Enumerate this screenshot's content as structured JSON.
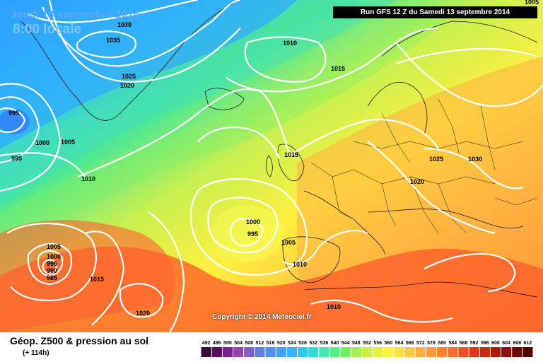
{
  "header": {
    "date_label": "Jeudi 18 septembre 2014",
    "hour_label": "8:00 locale",
    "run_label": "Run GFS 12 Z du Samedi 13 septembre 2014"
  },
  "isobars": [
    {
      "value": "1030"
    },
    {
      "value": "1035"
    },
    {
      "value": "1025"
    },
    {
      "value": "1020"
    },
    {
      "value": "995"
    },
    {
      "value": "1000"
    },
    {
      "value": "1005"
    },
    {
      "value": "995"
    },
    {
      "value": "1010"
    },
    {
      "value": "1010"
    },
    {
      "value": "1015"
    },
    {
      "value": "1015"
    },
    {
      "value": "1025"
    },
    {
      "value": "1030"
    },
    {
      "value": "1020"
    },
    {
      "value": "1000"
    },
    {
      "value": "995"
    },
    {
      "value": "1005"
    },
    {
      "value": "1010"
    },
    {
      "value": "1005"
    },
    {
      "value": "1000"
    },
    {
      "value": "995"
    },
    {
      "value": "990"
    },
    {
      "value": "985"
    },
    {
      "value": "1015"
    },
    {
      "value": "1020"
    },
    {
      "value": "1010"
    },
    {
      "value": "1005"
    }
  ],
  "copyright": "Copyright © 2014 Meteociel.fr",
  "legend": {
    "title": "Géop. Z500 & pression au sol",
    "subtitle": "(+ 114h)",
    "scale_values": [
      "492",
      "496",
      "500",
      "504",
      "508",
      "512",
      "516",
      "520",
      "524",
      "528",
      "532",
      "536",
      "540",
      "544",
      "548",
      "552",
      "556",
      "560",
      "564",
      "568",
      "572",
      "576",
      "580",
      "584",
      "588",
      "592",
      "596",
      "600",
      "604",
      "608",
      "612"
    ],
    "scale_colors": [
      "#3a0a3a",
      "#5a1060",
      "#7a2090",
      "#9a40b0",
      "#8060c8",
      "#6080e0",
      "#5090f0",
      "#40a0ff",
      "#30b4ff",
      "#30c8f0",
      "#30dcd8",
      "#40e8b0",
      "#50f080",
      "#70f060",
      "#a0f050",
      "#c8f040",
      "#e8f040",
      "#fff040",
      "#ffe040",
      "#ffc840",
      "#ffb040",
      "#ff9838",
      "#ff8030",
      "#ff6828",
      "#f05020",
      "#e03818",
      "#c82810",
      "#b01808",
      "#901010",
      "#700808",
      "#500404"
    ]
  }
}
